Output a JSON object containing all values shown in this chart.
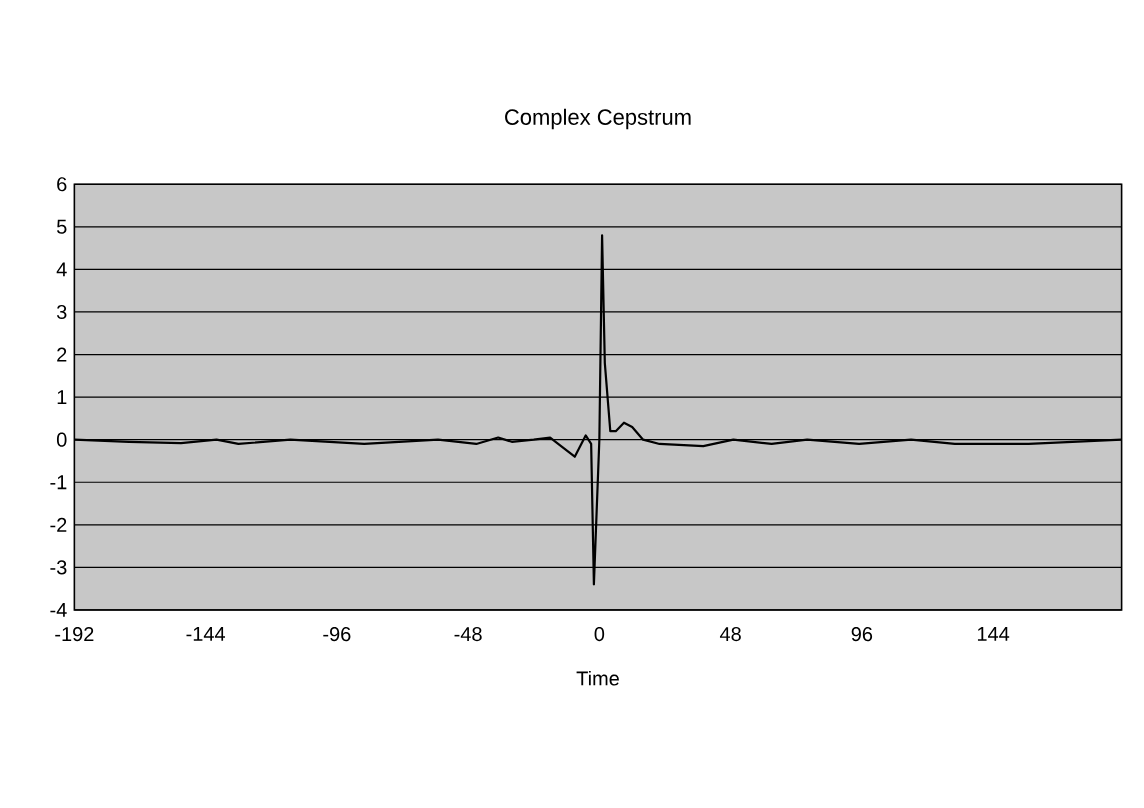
{
  "chart_data": {
    "type": "line",
    "title": "Complex Cepstrum",
    "xlabel": "Time",
    "x": [
      -192,
      -172,
      -153,
      -140,
      -132,
      -113,
      -86,
      -59,
      -45,
      -37,
      -32,
      -24,
      -18,
      -14,
      -9,
      -5,
      -3,
      -2,
      0,
      1,
      2,
      4,
      6,
      9,
      12,
      16,
      22,
      38,
      49,
      63,
      76,
      95,
      114,
      130,
      157,
      173,
      191
    ],
    "series": [
      {
        "color": "#000000",
        "values": [
          0,
          -0.05,
          -0.08,
          0,
          -0.1,
          0,
          -0.1,
          0,
          -0.1,
          0.05,
          -0.05,
          0,
          0.05,
          -0.15,
          -0.4,
          0.1,
          -0.1,
          -3.4,
          0,
          4.8,
          1.8,
          0.2,
          0.2,
          0.4,
          0.3,
          0,
          -0.1,
          -0.15,
          0,
          -0.1,
          0,
          -0.1,
          0,
          -0.1,
          -0.1,
          -0.05,
          0
        ]
      }
    ],
    "xlim": [
      -192,
      191
    ],
    "ylim": [
      -4,
      6
    ],
    "xticks": [
      -192,
      -144,
      -96,
      -48,
      0,
      48,
      96,
      144
    ],
    "yticks": [
      -4,
      -3,
      -2,
      -1,
      0,
      1,
      2,
      3,
      4,
      5,
      6
    ],
    "grid": "y",
    "marker": "none",
    "line_style": "solid"
  }
}
